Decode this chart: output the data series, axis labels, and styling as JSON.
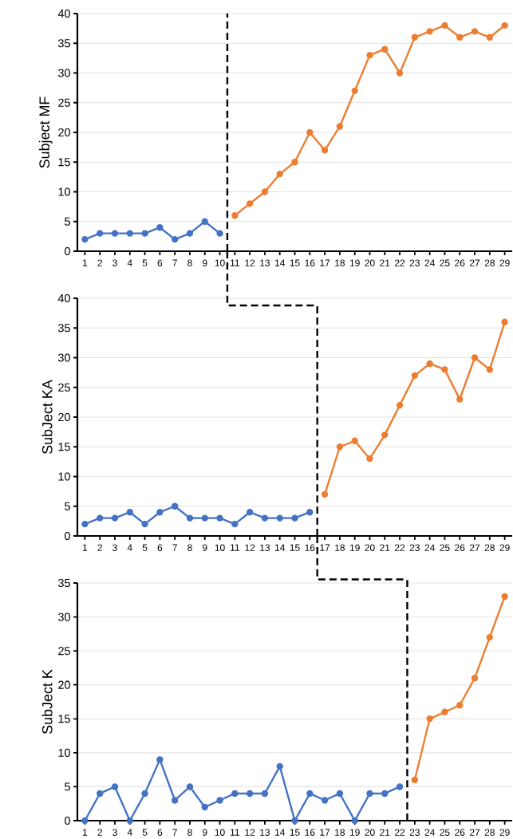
{
  "chart_data": [
    {
      "type": "line",
      "ylabel": "Subject MF",
      "xlim": [
        0.5,
        29.5
      ],
      "xticks": [
        1,
        2,
        3,
        4,
        5,
        6,
        7,
        8,
        9,
        10,
        11,
        12,
        13,
        14,
        15,
        16,
        17,
        18,
        19,
        20,
        21,
        22,
        23,
        24,
        25,
        26,
        27,
        28,
        29
      ],
      "ylim": [
        0,
        40
      ],
      "yticks": [
        0,
        5,
        10,
        15,
        20,
        25,
        30,
        35,
        40
      ],
      "grid": "y",
      "marker": "circle",
      "line_style": "solid",
      "series": [
        {
          "color": "#4472c4",
          "x": [
            1,
            2,
            3,
            4,
            5,
            6,
            7,
            8,
            9,
            10
          ],
          "values": [
            2,
            3,
            3,
            3,
            3,
            4,
            2,
            3,
            5,
            3
          ]
        },
        {
          "color": "#ed7d31",
          "x": [
            11,
            12,
            13,
            14,
            15,
            16,
            17,
            18,
            19,
            20,
            21,
            22,
            23,
            24,
            25,
            26,
            27,
            28,
            29
          ],
          "values": [
            6,
            8,
            10,
            13,
            15,
            20,
            17,
            21,
            27,
            33,
            34,
            30,
            36,
            37,
            38,
            36,
            37,
            36,
            38
          ]
        }
      ],
      "ref_lines": [
        {
          "axis": "x",
          "value": 10.5,
          "color": "#000000",
          "line_style": "dashed"
        }
      ]
    },
    {
      "type": "line",
      "ylabel": "SubJect KA",
      "xlim": [
        0.5,
        29.5
      ],
      "xticks": [
        1,
        2,
        3,
        4,
        5,
        6,
        7,
        8,
        9,
        10,
        11,
        12,
        13,
        14,
        15,
        16,
        17,
        18,
        19,
        20,
        21,
        22,
        23,
        24,
        25,
        26,
        27,
        28,
        29
      ],
      "ylim": [
        0,
        40
      ],
      "yticks": [
        0,
        5,
        10,
        15,
        20,
        25,
        30,
        35,
        40
      ],
      "grid": "y",
      "marker": "circle",
      "line_style": "solid",
      "series": [
        {
          "color": "#4472c4",
          "x": [
            1,
            2,
            3,
            4,
            5,
            6,
            7,
            8,
            9,
            10,
            11,
            12,
            13,
            14,
            15,
            16
          ],
          "values": [
            2,
            3,
            3,
            4,
            2,
            4,
            5,
            3,
            3,
            3,
            2,
            4,
            3,
            3,
            3,
            4
          ]
        },
        {
          "color": "#ed7d31",
          "x": [
            17,
            18,
            19,
            20,
            21,
            22,
            23,
            24,
            25,
            26,
            27,
            28,
            29
          ],
          "values": [
            7,
            15,
            16,
            13,
            17,
            22,
            27,
            29,
            28,
            23,
            30,
            28,
            36
          ]
        }
      ],
      "ref_lines": [
        {
          "axis": "x",
          "value": 16.5,
          "color": "#000000",
          "line_style": "dashed"
        }
      ]
    },
    {
      "type": "line",
      "ylabel": "SubJect K",
      "xlim": [
        0.5,
        29.5
      ],
      "xticks": [
        1,
        2,
        3,
        4,
        5,
        6,
        7,
        8,
        9,
        10,
        11,
        12,
        13,
        14,
        15,
        16,
        17,
        18,
        19,
        20,
        21,
        22,
        23,
        24,
        25,
        26,
        27,
        28,
        29
      ],
      "ylim": [
        0,
        35
      ],
      "yticks": [
        0,
        5,
        10,
        15,
        20,
        25,
        30,
        35
      ],
      "grid": "y",
      "marker": "circle",
      "line_style": "solid",
      "series": [
        {
          "color": "#4472c4",
          "x": [
            1,
            2,
            3,
            4,
            5,
            6,
            7,
            8,
            9,
            10,
            11,
            12,
            13,
            14,
            15,
            16,
            17,
            18,
            19,
            20,
            21,
            22
          ],
          "values": [
            0,
            4,
            5,
            0,
            4,
            9,
            3,
            5,
            2,
            3,
            4,
            4,
            4,
            8,
            0,
            4,
            3,
            4,
            0,
            4,
            4,
            5
          ]
        },
        {
          "color": "#ed7d31",
          "x": [
            23,
            24,
            25,
            26,
            27,
            28,
            29
          ],
          "values": [
            6,
            15,
            16,
            17,
            21,
            27,
            33
          ]
        }
      ],
      "ref_lines": [
        {
          "axis": "x",
          "value": 22.5,
          "color": "#000000",
          "line_style": "dashed"
        }
      ]
    }
  ]
}
